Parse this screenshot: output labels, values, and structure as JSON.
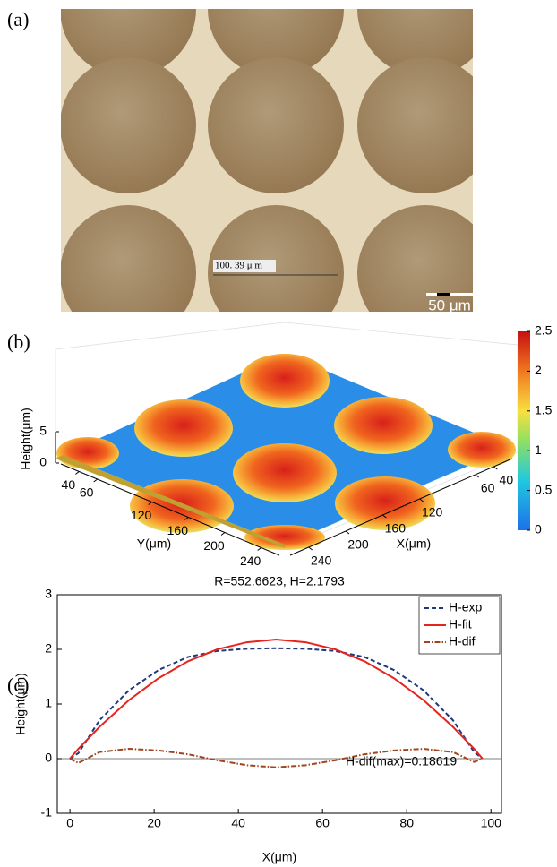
{
  "panel_a": {
    "label": "(a)",
    "measurement": "100. 39 μ m",
    "scale_bar": "50 μm"
  },
  "chart_data": [
    {
      "type": "surface3d",
      "label": "(b)",
      "zlabel": "Height(μm)",
      "zlim": [
        0,
        5
      ],
      "zticks": [
        0,
        5
      ],
      "xlabel": "X(μm)",
      "xlim": [
        20,
        260
      ],
      "xticks": [
        40,
        60,
        120,
        160,
        200,
        240
      ],
      "ylabel": "Y(μm)",
      "ylim": [
        20,
        260
      ],
      "yticks": [
        40,
        60,
        120,
        160,
        200,
        240
      ],
      "colorbar": {
        "clim": [
          0,
          2.5
        ],
        "ticks": [
          0,
          0.5,
          1,
          1.5,
          2,
          2.5
        ]
      }
    },
    {
      "type": "line",
      "label": "(c)",
      "title": "R=552.6623, H=2.1793",
      "xlabel": "X(μm)",
      "ylabel": "Height(μm)",
      "xlim": [
        -3,
        102.5
      ],
      "ylim": [
        -1,
        3
      ],
      "xticks": [
        0,
        20,
        40,
        60,
        80,
        100
      ],
      "yticks": [
        -1,
        0,
        1,
        2,
        3
      ],
      "legend": "upper right",
      "annotation": "H-dif(max)=0.18619",
      "x": [
        0,
        2,
        7,
        14,
        21,
        28,
        35,
        42,
        49,
        56,
        63,
        70,
        77,
        84,
        91,
        96,
        98
      ],
      "series": [
        {
          "name": "H-exp",
          "color": "#1f3a7a",
          "dash": "5,3",
          "values": [
            0,
            0.1,
            0.7,
            1.25,
            1.62,
            1.86,
            1.97,
            2.01,
            2.02,
            2.01,
            1.97,
            1.86,
            1.62,
            1.25,
            0.7,
            0.12,
            0
          ]
        },
        {
          "name": "H-fit",
          "color": "#e8221c",
          "dash": "none",
          "values": [
            0,
            0.18,
            0.58,
            1.07,
            1.47,
            1.78,
            2.0,
            2.13,
            2.18,
            2.13,
            2.0,
            1.78,
            1.47,
            1.07,
            0.58,
            0.18,
            0
          ]
        },
        {
          "name": "H-dif",
          "color": "#a0461e",
          "dash": "6,2,1.5,2",
          "values": [
            0,
            -0.08,
            0.12,
            0.18,
            0.15,
            0.08,
            -0.03,
            -0.12,
            -0.16,
            -0.12,
            -0.03,
            0.08,
            0.15,
            0.18,
            0.12,
            -0.06,
            0
          ]
        }
      ]
    }
  ]
}
